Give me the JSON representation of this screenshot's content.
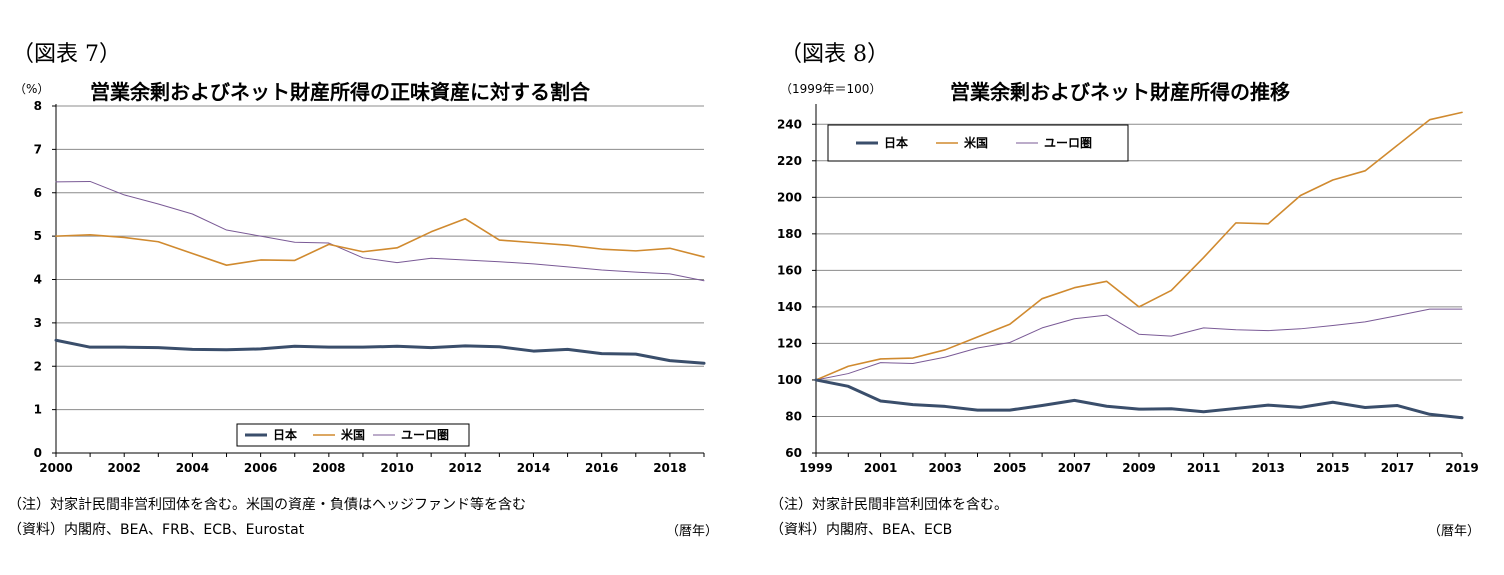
{
  "left": {
    "figure_label": "（図表 7）",
    "unit": "（%）",
    "title": "営業余剰およびネット財産所得の正味資産に対する割合",
    "note": "（注）対家計民間非営利団体を含む。米国の資産・負債はヘッジファンド等を含む",
    "source": "（資料）内閣府、BEA、FRB、ECB、Eurostat",
    "x_unit": "（暦年）"
  },
  "right": {
    "figure_label": "（図表 8）",
    "unit": "（1999年＝100）",
    "title": "営業余剰およびネット財産所得の推移",
    "note": "（注）対家計民間非営利団体を含む。",
    "source": "（資料）内閣府、BEA、ECB",
    "x_unit": "（暦年）"
  },
  "chart_data": [
    {
      "type": "line",
      "title": "営業余剰およびネット財産所得の正味資産に対する割合",
      "ylabel": "（%）",
      "xlabel": "（暦年）",
      "ylim": [
        0,
        8
      ],
      "yticks": [
        0,
        1,
        2,
        3,
        4,
        5,
        6,
        7,
        8
      ],
      "xlim": [
        2000,
        2019
      ],
      "xticks": [
        2000,
        2002,
        2004,
        2006,
        2008,
        2010,
        2012,
        2014,
        2016,
        2018
      ],
      "legend_position": "bottom-center",
      "x": [
        2000,
        2001,
        2002,
        2003,
        2004,
        2005,
        2006,
        2007,
        2008,
        2009,
        2010,
        2011,
        2012,
        2013,
        2014,
        2015,
        2016,
        2017,
        2018,
        2019
      ],
      "series": [
        {
          "name": "日本",
          "color": "#3a4e6b",
          "width": "thick",
          "values": [
            2.6,
            2.44,
            2.44,
            2.43,
            2.39,
            2.38,
            2.4,
            2.46,
            2.44,
            2.44,
            2.46,
            2.43,
            2.47,
            2.45,
            2.35,
            2.39,
            2.29,
            2.28,
            2.13,
            2.07
          ]
        },
        {
          "name": "米国",
          "color": "#d08a2f",
          "width": "medium",
          "values": [
            5.0,
            5.03,
            4.97,
            4.87,
            4.6,
            4.33,
            4.45,
            4.44,
            4.81,
            4.64,
            4.73,
            5.1,
            5.4,
            4.91,
            4.85,
            4.79,
            4.7,
            4.66,
            4.72,
            4.52
          ]
        },
        {
          "name": "ユーロ圏",
          "color": "#7a5a96",
          "width": "thin",
          "values": [
            6.25,
            6.26,
            5.95,
            5.74,
            5.51,
            5.14,
            5.0,
            4.86,
            4.84,
            4.5,
            4.39,
            4.49,
            4.45,
            4.41,
            4.36,
            4.29,
            4.22,
            4.17,
            4.13,
            3.97
          ]
        }
      ]
    },
    {
      "type": "line",
      "title": "営業余剰およびネット財産所得の推移",
      "ylabel": "（1999年＝100）",
      "xlabel": "（暦年）",
      "ylim": [
        60,
        250
      ],
      "yticks": [
        60,
        80,
        100,
        120,
        140,
        160,
        180,
        200,
        220,
        240
      ],
      "xlim": [
        1999,
        2019
      ],
      "xticks": [
        1999,
        2001,
        2003,
        2005,
        2007,
        2009,
        2011,
        2013,
        2015,
        2017,
        2019
      ],
      "legend_position": "top-left",
      "x": [
        1999,
        2000,
        2001,
        2002,
        2003,
        2004,
        2005,
        2006,
        2007,
        2008,
        2009,
        2010,
        2011,
        2012,
        2013,
        2014,
        2015,
        2016,
        2017,
        2018,
        2019
      ],
      "series": [
        {
          "name": "日本",
          "color": "#3a4e6b",
          "width": "thick",
          "values": [
            100,
            96.5,
            88.5,
            86.5,
            85.5,
            83.5,
            83.5,
            86,
            88.8,
            85.6,
            84,
            84.2,
            82.6,
            84.4,
            86.2,
            85,
            87.8,
            84.9,
            86,
            81.2,
            79.3
          ]
        },
        {
          "name": "米国",
          "color": "#d08a2f",
          "width": "medium",
          "values": [
            100,
            107.5,
            111.5,
            112,
            116.5,
            123.5,
            130.5,
            144.5,
            150.5,
            154,
            140,
            149,
            167,
            186,
            185.5,
            201,
            209.5,
            214.5,
            228.5,
            242.5,
            246.5
          ]
        },
        {
          "name": "ユーロ圏",
          "color": "#7a5a96",
          "width": "thin",
          "values": [
            100,
            103.5,
            109.5,
            109,
            112.5,
            117.5,
            120.5,
            128.5,
            133.5,
            135.5,
            125,
            124,
            128.5,
            127.5,
            127,
            128,
            129.8,
            131.8,
            135.2,
            138.8,
            138.8
          ]
        }
      ]
    }
  ]
}
